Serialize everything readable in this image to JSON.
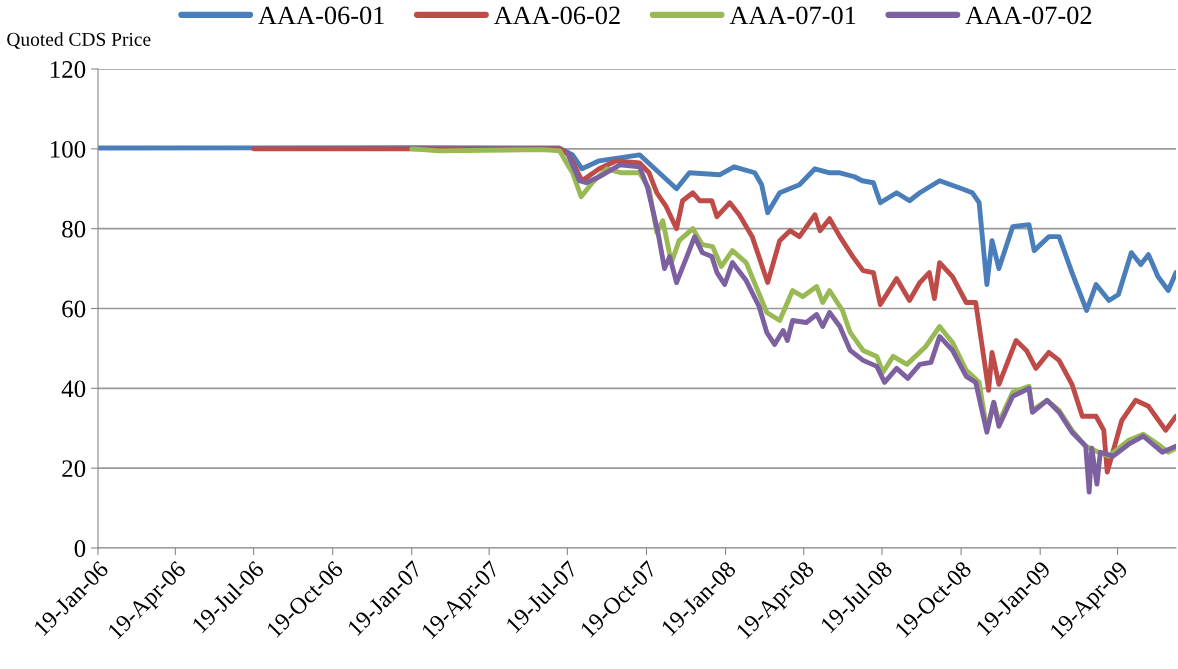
{
  "chart_data": {
    "type": "line",
    "ylabel": "Quoted CDS Price",
    "legend": "top",
    "grid": "y",
    "marker": "none",
    "line_style": "solid",
    "xlim": [
      "2006-01-19",
      "2009-06-26"
    ],
    "ylim": [
      0,
      120
    ],
    "yticks": [
      0,
      20,
      40,
      60,
      80,
      100,
      120
    ],
    "xticks": [
      {
        "value": "2006-01-19",
        "label": "19-Jan-06"
      },
      {
        "value": "2006-04-19",
        "label": "19-Apr-06"
      },
      {
        "value": "2006-07-19",
        "label": "19-Jul-06"
      },
      {
        "value": "2006-10-19",
        "label": "19-Oct-06"
      },
      {
        "value": "2007-01-19",
        "label": "19-Jan-07"
      },
      {
        "value": "2007-04-19",
        "label": "19-Apr-07"
      },
      {
        "value": "2007-07-19",
        "label": "19-Jul-07"
      },
      {
        "value": "2007-10-19",
        "label": "19-Oct-07"
      },
      {
        "value": "2008-01-19",
        "label": "19-Jan-08"
      },
      {
        "value": "2008-04-19",
        "label": "19-Apr-08"
      },
      {
        "value": "2008-07-19",
        "label": "19-Jul-08"
      },
      {
        "value": "2008-10-19",
        "label": "19-Oct-08"
      },
      {
        "value": "2009-01-19",
        "label": "19-Jan-09"
      },
      {
        "value": "2009-04-19",
        "label": "19-Apr-09"
      }
    ],
    "series": [
      {
        "name": "AAA-06-01",
        "color": "#4a7ebb",
        "x": [
          "2006-01-19",
          "2007-01-19",
          "2007-07-10",
          "2007-07-25",
          "2007-08-05",
          "2007-08-25",
          "2007-10-11",
          "2007-11-23",
          "2007-12-08",
          "2008-01-12",
          "2008-01-29",
          "2008-02-22",
          "2008-03-01",
          "2008-03-08",
          "2008-03-22",
          "2008-04-14",
          "2008-05-02",
          "2008-05-19",
          "2008-05-31",
          "2008-06-17",
          "2008-06-26",
          "2008-07-09",
          "2008-07-17",
          "2008-08-05",
          "2008-08-20",
          "2008-09-01",
          "2008-09-24",
          "2008-10-20",
          "2008-11-01",
          "2008-11-09",
          "2008-11-18",
          "2008-11-24",
          "2008-12-02",
          "2008-12-18",
          "2009-01-06",
          "2009-01-12",
          "2009-01-29",
          "2009-02-10",
          "2009-02-25",
          "2009-03-14",
          "2009-03-25",
          "2009-04-09",
          "2009-04-20",
          "2009-05-05",
          "2009-05-16",
          "2009-05-25",
          "2009-06-05",
          "2009-06-17",
          "2009-06-26"
        ],
        "values": [
          100.2,
          100.3,
          100.2,
          98.5,
          95,
          97,
          98.5,
          90,
          94,
          93.5,
          95.5,
          94,
          91,
          84,
          89,
          91,
          95,
          94,
          94,
          93,
          92,
          91.5,
          86.5,
          89,
          87,
          89,
          92,
          90,
          89,
          86.5,
          66,
          77,
          70,
          80.5,
          81,
          74.5,
          78,
          78,
          69,
          59.5,
          66,
          62,
          63.5,
          74,
          71,
          73.5,
          68,
          64.5,
          69
        ]
      },
      {
        "name": "AAA-06-02",
        "color": "#be4b48",
        "x": [
          "2006-07-19",
          "2007-07-10",
          "2007-07-21",
          "2007-08-05",
          "2007-08-25",
          "2007-09-14",
          "2007-10-11",
          "2007-10-22",
          "2007-10-31",
          "2007-11-11",
          "2007-11-23",
          "2007-11-30",
          "2007-12-12",
          "2007-12-20",
          "2008-01-03",
          "2008-01-09",
          "2008-01-24",
          "2008-02-04",
          "2008-02-19",
          "2008-03-08",
          "2008-03-22",
          "2008-04-03",
          "2008-04-14",
          "2008-05-02",
          "2008-05-08",
          "2008-05-19",
          "2008-05-31",
          "2008-06-15",
          "2008-06-27",
          "2008-07-09",
          "2008-07-17",
          "2008-08-05",
          "2008-08-20",
          "2008-09-01",
          "2008-09-12",
          "2008-09-18",
          "2008-09-24",
          "2008-10-09",
          "2008-10-25",
          "2008-11-05",
          "2008-11-20",
          "2008-11-24",
          "2008-12-02",
          "2008-12-22",
          "2009-01-03",
          "2009-01-14",
          "2009-01-29",
          "2009-02-10",
          "2009-02-25",
          "2009-03-09",
          "2009-03-25",
          "2009-04-03",
          "2009-04-07",
          "2009-04-24",
          "2009-05-10",
          "2009-05-25",
          "2009-06-14",
          "2009-06-26"
        ],
        "values": [
          100,
          100,
          98.5,
          92,
          95,
          97,
          96.5,
          94,
          89,
          85.5,
          80,
          87,
          89,
          87,
          87,
          83,
          86.5,
          83.5,
          78,
          66.5,
          77,
          79.5,
          78,
          83.5,
          79.5,
          82.5,
          78,
          73,
          69.5,
          69,
          61,
          67.5,
          62,
          66.5,
          69,
          62.5,
          71.5,
          68,
          61.5,
          61.5,
          39.5,
          49,
          41,
          52,
          49.5,
          45,
          49,
          47,
          41,
          33,
          33,
          29.5,
          19,
          32,
          37,
          35.5,
          29.5,
          33
        ]
      },
      {
        "name": "AAA-07-01",
        "color": "#98b954",
        "x": [
          "2007-01-19",
          "2007-02-20",
          "2007-06-20",
          "2007-07-10",
          "2007-07-18",
          "2007-07-25",
          "2007-08-04",
          "2007-08-17",
          "2007-09-03",
          "2007-09-20",
          "2007-10-11",
          "2007-10-22",
          "2007-10-31",
          "2007-11-07",
          "2007-11-17",
          "2007-11-26",
          "2007-12-12",
          "2007-12-23",
          "2008-01-04",
          "2008-01-14",
          "2008-01-27",
          "2008-02-12",
          "2008-03-07",
          "2008-03-22",
          "2008-04-06",
          "2008-04-18",
          "2008-05-04",
          "2008-05-11",
          "2008-05-19",
          "2008-06-03",
          "2008-06-12",
          "2008-06-27",
          "2008-07-13",
          "2008-07-20",
          "2008-08-01",
          "2008-08-17",
          "2008-09-08",
          "2008-09-24",
          "2008-10-09",
          "2008-10-25",
          "2008-11-09",
          "2008-11-18",
          "2008-11-26",
          "2008-12-02",
          "2008-12-18",
          "2009-01-06",
          "2009-01-10",
          "2009-01-27",
          "2009-02-10",
          "2009-02-25",
          "2009-03-13",
          "2009-03-28",
          "2009-04-09",
          "2009-05-02",
          "2009-05-19",
          "2009-06-05",
          "2009-06-17",
          "2009-06-26"
        ],
        "values": [
          100,
          99.5,
          99.8,
          99.5,
          96.5,
          94,
          88,
          91.5,
          95,
          94,
          94,
          90,
          79,
          82,
          71.5,
          77,
          80,
          76,
          75.5,
          70.5,
          74.5,
          71.5,
          59,
          57,
          64.5,
          63,
          65.5,
          61.5,
          64.5,
          59.5,
          54,
          49.5,
          48,
          44,
          48,
          46,
          50.5,
          55.5,
          51.5,
          44.5,
          41.5,
          29.5,
          36.5,
          31.5,
          39,
          40.5,
          34.5,
          37,
          34.5,
          29.5,
          25.5,
          24,
          23,
          27,
          28.5,
          26,
          24,
          25
        ]
      },
      {
        "name": "AAA-07-02",
        "color": "#7d60a0",
        "x": [
          "2007-07-19",
          "2007-08-02",
          "2007-08-10",
          "2007-08-25",
          "2007-09-18",
          "2007-10-11",
          "2007-10-20",
          "2007-11-01",
          "2007-11-09",
          "2007-11-15",
          "2007-11-23",
          "2007-12-05",
          "2007-12-14",
          "2007-12-23",
          "2008-01-03",
          "2008-01-09",
          "2008-01-18",
          "2008-01-27",
          "2008-02-12",
          "2008-02-27",
          "2008-03-07",
          "2008-03-16",
          "2008-03-26",
          "2008-03-31",
          "2008-04-06",
          "2008-04-22",
          "2008-05-04",
          "2008-05-11",
          "2008-05-19",
          "2008-05-31",
          "2008-06-12",
          "2008-06-27",
          "2008-07-13",
          "2008-07-22",
          "2008-08-05",
          "2008-08-18",
          "2008-09-01",
          "2008-09-14",
          "2008-09-24",
          "2008-10-09",
          "2008-10-25",
          "2008-11-05",
          "2008-11-18",
          "2008-11-26",
          "2008-12-02",
          "2008-12-18",
          "2009-01-06",
          "2009-01-10",
          "2009-01-27",
          "2009-02-10",
          "2009-02-25",
          "2009-03-13",
          "2009-03-17",
          "2009-03-20",
          "2009-03-26",
          "2009-03-30",
          "2009-04-14",
          "2009-05-02",
          "2009-05-19",
          "2009-06-10",
          "2009-06-26"
        ],
        "values": [
          99,
          92,
          91.5,
          93,
          96,
          95.5,
          90.5,
          79.5,
          70,
          73,
          66.5,
          73,
          78,
          74,
          73,
          69,
          66,
          71.5,
          67,
          60.5,
          54,
          51,
          54.5,
          52,
          57,
          56.5,
          58.5,
          55.5,
          59,
          55.5,
          49.5,
          47,
          45.5,
          41.5,
          45,
          42.5,
          46,
          46.5,
          53,
          49.5,
          43,
          41.5,
          29,
          36.5,
          30.5,
          38,
          40,
          34,
          37,
          34,
          29,
          25.5,
          14,
          25,
          16,
          24,
          23,
          26,
          28,
          24,
          25.5
        ]
      }
    ]
  }
}
